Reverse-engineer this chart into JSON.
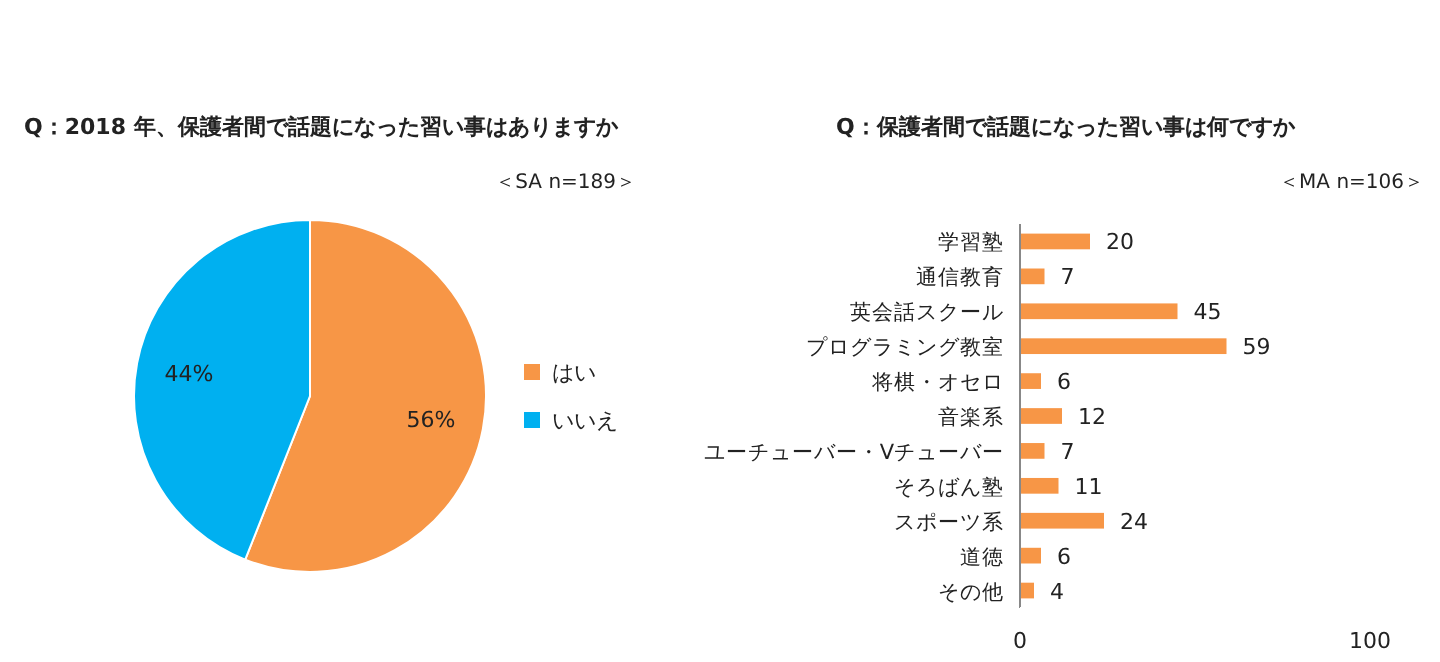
{
  "chart_data": [
    {
      "type": "pie",
      "title": "Q：2018 年、保護者間で話題になった習い事はありますか",
      "annotations": [
        "＜SA n=189＞"
      ],
      "categories": [
        "はい",
        "いいえ"
      ],
      "values": [
        56,
        44
      ],
      "colors": [
        "#f79646",
        "#00b0f0"
      ],
      "value_labels": [
        "56%",
        "44%"
      ],
      "legend": "right"
    },
    {
      "type": "bar",
      "orientation": "horizontal",
      "title": "Q：保護者間で話題になった習い事は何ですか",
      "annotations": [
        "＜MA n=106＞"
      ],
      "categories": [
        "学習塾",
        "通信教育",
        "英会話スクール",
        "プログラミング教室",
        "将棋・オセロ",
        "音楽系",
        "ユーチューバー・Vチューバー",
        "そろばん塾",
        "スポーツ系",
        "道徳",
        "その他"
      ],
      "values": [
        20,
        7,
        45,
        59,
        6,
        12,
        7,
        11,
        24,
        6,
        4
      ],
      "color": "#f79646",
      "xlim": [
        0,
        100
      ],
      "xticks": [
        0,
        100
      ],
      "data_labels": true
    }
  ]
}
